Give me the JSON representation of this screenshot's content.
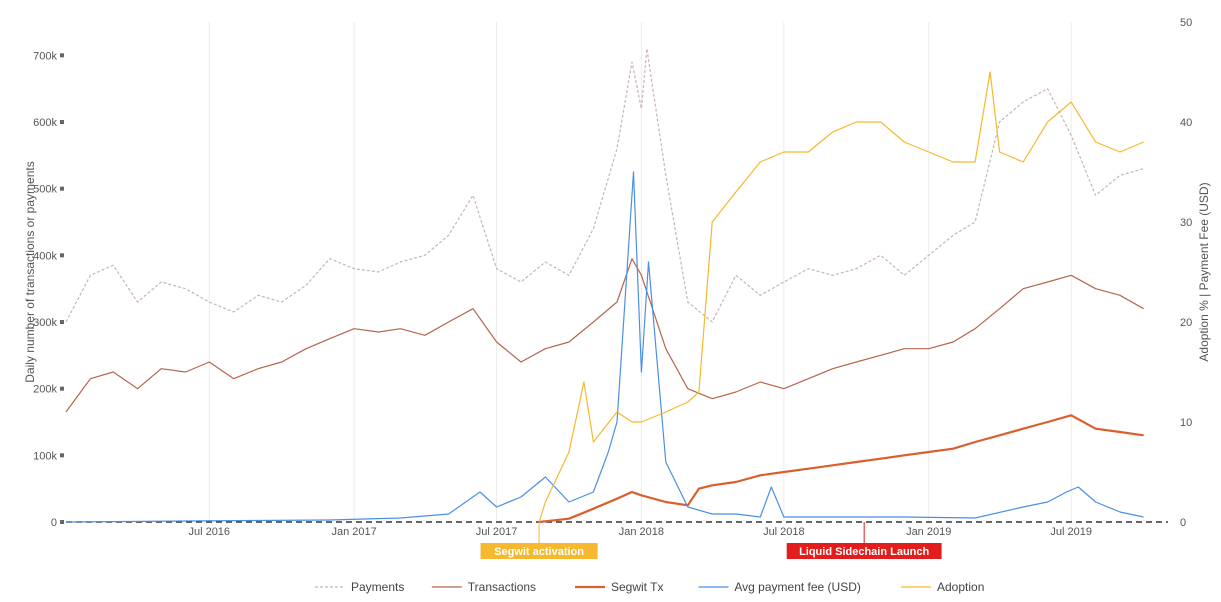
{
  "chart_data": {
    "type": "line",
    "title": "",
    "ylabel": "Daily number of transactions or payments",
    "y2label": "Adoption % | Payment Fee (USD)",
    "xlim": [
      "2016-01-01",
      "2019-11-01"
    ],
    "ylim": [
      0,
      750000
    ],
    "y2lim": [
      0,
      50
    ],
    "x_ticks": [
      "Jul 2016",
      "Jan 2017",
      "Jul 2017",
      "Jan 2018",
      "Jul 2018",
      "Jan 2019",
      "Jul 2019"
    ],
    "x_tick_dates": [
      "2016-07-01",
      "2017-01-01",
      "2017-07-01",
      "2018-01-01",
      "2018-07-01",
      "2019-01-01",
      "2019-07-01"
    ],
    "y_ticks": [
      0,
      100000,
      200000,
      300000,
      400000,
      500000,
      600000,
      700000
    ],
    "y_tick_labels": [
      "0",
      "100k",
      "200k",
      "300k",
      "400k",
      "500k",
      "600k",
      "700k"
    ],
    "y2_ticks": [
      0,
      10,
      20,
      30,
      40,
      50
    ],
    "y2_tick_labels": [
      "0",
      "10",
      "20",
      "30",
      "40",
      "50"
    ],
    "legend_position": "bottom",
    "grid": "vertical",
    "series": [
      {
        "name": "Payments",
        "axis": "left",
        "color": "#c9b4b4",
        "dash": true,
        "x": [
          "2016-01-01",
          "2016-02-01",
          "2016-03-01",
          "2016-04-01",
          "2016-05-01",
          "2016-06-01",
          "2016-07-01",
          "2016-08-01",
          "2016-09-01",
          "2016-10-01",
          "2016-11-01",
          "2016-12-01",
          "2017-01-01",
          "2017-02-01",
          "2017-03-01",
          "2017-04-01",
          "2017-05-01",
          "2017-06-01",
          "2017-07-01",
          "2017-08-01",
          "2017-09-01",
          "2017-10-01",
          "2017-11-01",
          "2017-12-01",
          "2017-12-20",
          "2018-01-01",
          "2018-01-08",
          "2018-02-01",
          "2018-03-01",
          "2018-04-01",
          "2018-05-01",
          "2018-06-01",
          "2018-07-01",
          "2018-08-01",
          "2018-09-01",
          "2018-10-01",
          "2018-11-01",
          "2018-12-01",
          "2019-01-01",
          "2019-02-01",
          "2019-03-01",
          "2019-04-01",
          "2019-05-01",
          "2019-06-01",
          "2019-07-01",
          "2019-08-01",
          "2019-09-01",
          "2019-10-01"
        ],
        "values": [
          300000,
          370000,
          385000,
          330000,
          360000,
          350000,
          330000,
          315000,
          340000,
          330000,
          355000,
          395000,
          380000,
          375000,
          390000,
          400000,
          430000,
          490000,
          380000,
          360000,
          390000,
          370000,
          440000,
          560000,
          690000,
          620000,
          710000,
          520000,
          330000,
          300000,
          370000,
          340000,
          360000,
          380000,
          370000,
          380000,
          400000,
          370000,
          400000,
          430000,
          450000,
          600000,
          630000,
          650000,
          580000,
          490000,
          520000,
          530000
        ]
      },
      {
        "name": "Transactions",
        "axis": "left",
        "color": "#b5654f",
        "dash": false,
        "x": [
          "2016-01-01",
          "2016-02-01",
          "2016-03-01",
          "2016-04-01",
          "2016-05-01",
          "2016-06-01",
          "2016-07-01",
          "2016-08-01",
          "2016-09-01",
          "2016-10-01",
          "2016-11-01",
          "2016-12-01",
          "2017-01-01",
          "2017-02-01",
          "2017-03-01",
          "2017-04-01",
          "2017-05-01",
          "2017-06-01",
          "2017-07-01",
          "2017-08-01",
          "2017-09-01",
          "2017-10-01",
          "2017-11-01",
          "2017-12-01",
          "2017-12-20",
          "2018-01-01",
          "2018-02-01",
          "2018-03-01",
          "2018-04-01",
          "2018-05-01",
          "2018-06-01",
          "2018-07-01",
          "2018-08-01",
          "2018-09-01",
          "2018-10-01",
          "2018-11-01",
          "2018-12-01",
          "2019-01-01",
          "2019-02-01",
          "2019-03-01",
          "2019-04-01",
          "2019-05-01",
          "2019-06-01",
          "2019-07-01",
          "2019-08-01",
          "2019-09-01",
          "2019-10-01"
        ],
        "values": [
          165000,
          215000,
          225000,
          200000,
          230000,
          225000,
          240000,
          215000,
          230000,
          240000,
          260000,
          275000,
          290000,
          285000,
          290000,
          280000,
          300000,
          320000,
          270000,
          240000,
          260000,
          270000,
          300000,
          330000,
          395000,
          370000,
          260000,
          200000,
          185000,
          195000,
          210000,
          200000,
          215000,
          230000,
          240000,
          250000,
          260000,
          260000,
          270000,
          290000,
          320000,
          350000,
          360000,
          370000,
          350000,
          340000,
          320000
        ]
      },
      {
        "name": "Segwit Tx",
        "axis": "left",
        "color": "#d95f2c",
        "dash": false,
        "x": [
          "2017-08-24",
          "2017-10-01",
          "2017-11-01",
          "2017-12-01",
          "2017-12-20",
          "2018-01-01",
          "2018-02-01",
          "2018-03-01",
          "2018-03-15",
          "2018-04-01",
          "2018-05-01",
          "2018-06-01",
          "2018-07-01",
          "2018-08-01",
          "2018-09-01",
          "2018-10-01",
          "2018-11-01",
          "2018-12-01",
          "2019-01-01",
          "2019-02-01",
          "2019-03-01",
          "2019-04-01",
          "2019-05-01",
          "2019-06-01",
          "2019-07-01",
          "2019-08-01",
          "2019-09-01",
          "2019-10-01"
        ],
        "values": [
          0,
          5000,
          20000,
          35000,
          45000,
          40000,
          30000,
          25000,
          50000,
          55000,
          60000,
          70000,
          75000,
          80000,
          85000,
          90000,
          95000,
          100000,
          105000,
          110000,
          120000,
          130000,
          140000,
          150000,
          160000,
          140000,
          135000,
          130000
        ]
      },
      {
        "name": "Avg payment fee (USD)",
        "axis": "right",
        "color": "#4a90e2",
        "dash": false,
        "x": [
          "2016-01-01",
          "2016-06-01",
          "2016-12-01",
          "2017-03-01",
          "2017-05-01",
          "2017-06-10",
          "2017-07-01",
          "2017-08-01",
          "2017-09-01",
          "2017-10-01",
          "2017-11-01",
          "2017-11-20",
          "2017-12-01",
          "2017-12-22",
          "2018-01-01",
          "2018-01-10",
          "2018-02-01",
          "2018-03-01",
          "2018-04-01",
          "2018-05-01",
          "2018-06-01",
          "2018-06-15",
          "2018-07-01",
          "2018-09-01",
          "2018-12-01",
          "2019-03-01",
          "2019-05-01",
          "2019-06-01",
          "2019-06-25",
          "2019-07-10",
          "2019-08-01",
          "2019-09-01",
          "2019-10-01"
        ],
        "values": [
          0,
          0.1,
          0.2,
          0.4,
          0.8,
          3.0,
          1.5,
          2.5,
          4.5,
          2.0,
          3.0,
          7.0,
          10.0,
          35.0,
          15.0,
          26.0,
          6.0,
          1.5,
          0.8,
          0.8,
          0.5,
          3.5,
          0.5,
          0.5,
          0.5,
          0.4,
          1.5,
          2.0,
          3.0,
          3.5,
          2.0,
          1.0,
          0.5
        ]
      },
      {
        "name": "Adoption",
        "axis": "right",
        "color": "#f5b82e",
        "dash": false,
        "x": [
          "2017-08-24",
          "2017-09-01",
          "2017-10-01",
          "2017-10-20",
          "2017-11-01",
          "2017-12-01",
          "2017-12-20",
          "2018-01-01",
          "2018-02-01",
          "2018-03-01",
          "2018-03-15",
          "2018-04-01",
          "2018-05-01",
          "2018-06-01",
          "2018-07-01",
          "2018-08-01",
          "2018-09-01",
          "2018-10-01",
          "2018-11-01",
          "2018-12-01",
          "2019-01-01",
          "2019-02-01",
          "2019-03-01",
          "2019-03-20",
          "2019-04-01",
          "2019-05-01",
          "2019-06-01",
          "2019-07-01",
          "2019-08-01",
          "2019-09-01",
          "2019-10-01"
        ],
        "values": [
          0,
          2,
          7,
          14,
          8,
          11,
          10,
          10,
          11,
          12,
          13,
          30,
          33,
          36,
          37,
          37,
          39,
          40,
          40,
          38,
          37,
          36,
          36,
          45,
          37,
          36,
          40,
          42,
          38,
          37,
          38
        ]
      }
    ],
    "annotations": [
      {
        "label": "Segwit activation",
        "x": "2017-08-24",
        "color": "#f5b82e"
      },
      {
        "label": "Liquid Sidechain Launch",
        "x": "2018-10-11",
        "color": "#e31c1c"
      }
    ]
  }
}
